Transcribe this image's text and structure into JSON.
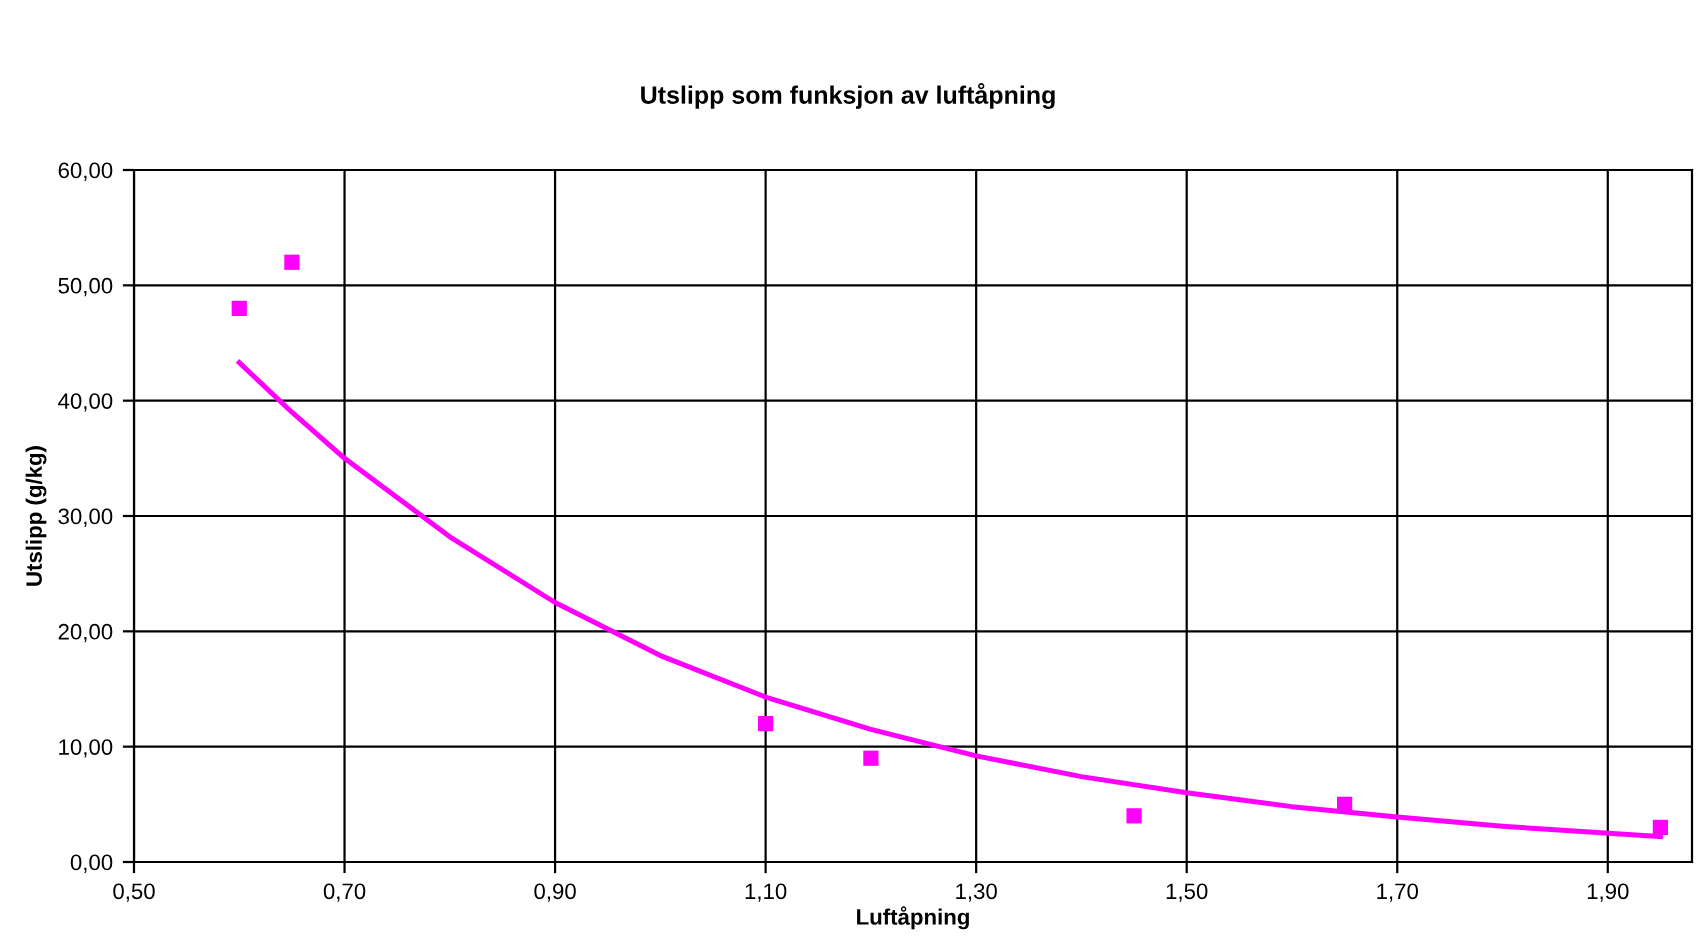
{
  "chart_data": {
    "type": "scatter",
    "title": "Utslipp som funksjon av luftåpning",
    "xlabel": "Luftåpning",
    "ylabel": "Utslipp (g/kg)",
    "series": [
      {
        "color": "#ff00ff",
        "marker": "square",
        "x": [
          0.6,
          0.65,
          1.1,
          1.2,
          1.45,
          1.65,
          1.95
        ],
        "values": [
          48,
          52,
          12,
          9,
          4,
          5,
          3
        ]
      },
      {
        "type": "line",
        "color": "#ff00ff",
        "marker": "none",
        "x": [
          0.6,
          0.65,
          0.7,
          0.8,
          0.9,
          1.0,
          1.1,
          1.2,
          1.3,
          1.4,
          1.5,
          1.6,
          1.7,
          1.8,
          1.95
        ],
        "values": [
          43.3,
          39.0,
          35.0,
          28.2,
          22.5,
          17.9,
          14.3,
          11.5,
          9.2,
          7.4,
          6.0,
          4.8,
          3.9,
          3.1,
          2.2
        ]
      }
    ],
    "xlim": [
      0.5,
      1.98
    ],
    "ylim": [
      0,
      60
    ],
    "xticks": [
      {
        "value": 0.5,
        "label": "0,50"
      },
      {
        "value": 0.7,
        "label": "0,70"
      },
      {
        "value": 0.9,
        "label": "0,90"
      },
      {
        "value": 1.1,
        "label": "1,10"
      },
      {
        "value": 1.3,
        "label": "1,30"
      },
      {
        "value": 1.5,
        "label": "1,50"
      },
      {
        "value": 1.7,
        "label": "1,70"
      },
      {
        "value": 1.9,
        "label": "1,90"
      }
    ],
    "yticks": [
      {
        "value": 0,
        "label": "0,00"
      },
      {
        "value": 10,
        "label": "10,00"
      },
      {
        "value": 20,
        "label": "20,00"
      },
      {
        "value": 30,
        "label": "30,00"
      },
      {
        "value": 40,
        "label": "40,00"
      },
      {
        "value": 50,
        "label": "50,00"
      },
      {
        "value": 60,
        "label": "60,00"
      }
    ],
    "grid": true
  }
}
